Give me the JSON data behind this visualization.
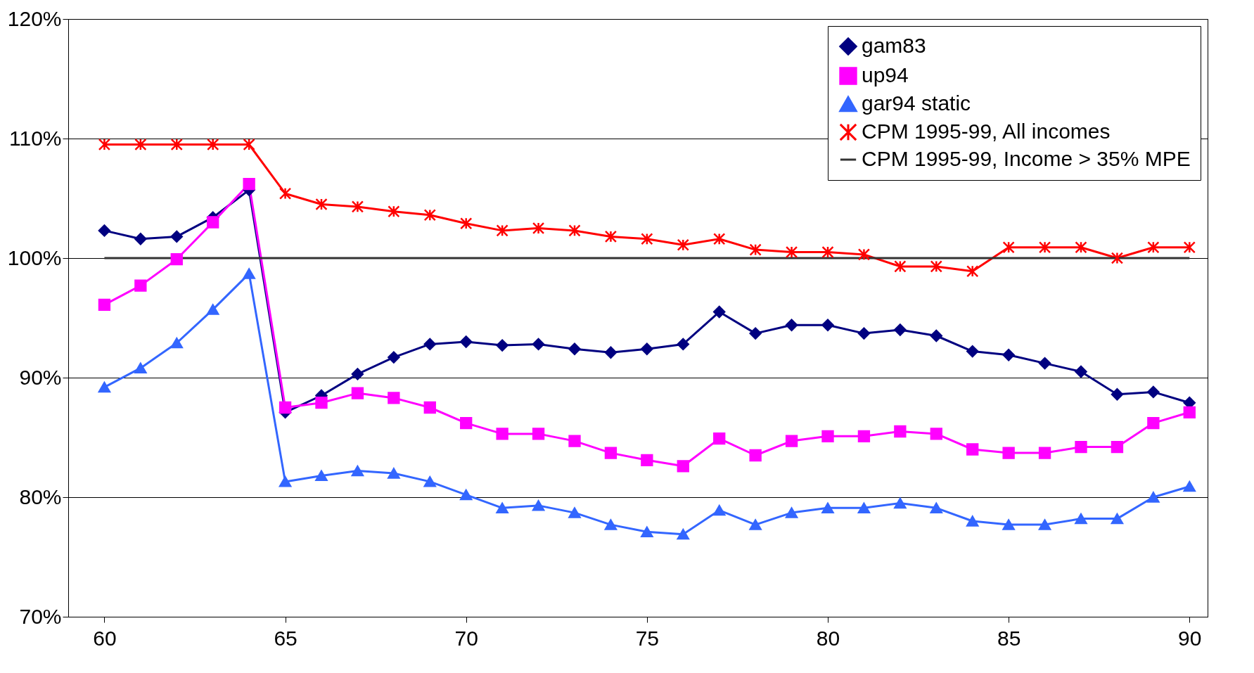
{
  "chart_data": {
    "type": "line",
    "x": [
      60,
      61,
      62,
      63,
      64,
      65,
      66,
      67,
      68,
      69,
      70,
      71,
      72,
      73,
      74,
      75,
      76,
      77,
      78,
      79,
      80,
      81,
      82,
      83,
      84,
      85,
      86,
      87,
      88,
      89,
      90
    ],
    "xlim": [
      59,
      90.5
    ],
    "xticks": [
      60,
      65,
      70,
      75,
      80,
      85,
      90
    ],
    "ylim": [
      70,
      120
    ],
    "yticks": [
      {
        "value": 70,
        "label": "70%"
      },
      {
        "value": 80,
        "label": "80%"
      },
      {
        "value": 90,
        "label": "90%"
      },
      {
        "value": 100,
        "label": "100%"
      },
      {
        "value": 110,
        "label": "110%"
      },
      {
        "value": 120,
        "label": "120%"
      }
    ],
    "grid": "y",
    "legend": "top right",
    "series": [
      {
        "name": "gam83",
        "color": "#000080",
        "marker": "diamond",
        "values": [
          102.3,
          101.6,
          101.8,
          103.4,
          105.7,
          87.1,
          88.5,
          90.3,
          91.7,
          92.8,
          93.0,
          92.7,
          92.8,
          92.4,
          92.1,
          92.4,
          92.8,
          95.5,
          93.7,
          94.4,
          94.4,
          93.7,
          94.0,
          93.5,
          92.2,
          91.9,
          91.2,
          90.5,
          88.6,
          88.8,
          87.9
        ]
      },
      {
        "name": "up94",
        "color": "#ff00ff",
        "marker": "square",
        "values": [
          96.1,
          97.7,
          99.9,
          103.0,
          106.2,
          87.5,
          87.9,
          88.7,
          88.3,
          87.5,
          86.2,
          85.3,
          85.3,
          84.7,
          83.7,
          83.1,
          82.6,
          84.9,
          83.5,
          84.7,
          85.1,
          85.1,
          85.5,
          85.3,
          84.0,
          83.7,
          83.7,
          84.2,
          84.2,
          86.2,
          87.1
        ]
      },
      {
        "name": "gar94 static",
        "color": "#3366ff",
        "marker": "triangle",
        "values": [
          89.2,
          90.8,
          92.9,
          95.7,
          98.7,
          81.3,
          81.8,
          82.2,
          82.0,
          81.3,
          80.2,
          79.1,
          79.3,
          78.7,
          77.7,
          77.1,
          76.9,
          78.9,
          77.7,
          78.7,
          79.1,
          79.1,
          79.5,
          79.1,
          78.0,
          77.7,
          77.7,
          78.2,
          78.2,
          80.0,
          80.9
        ]
      },
      {
        "name": "CPM 1995-99, All incomes",
        "color": "#ff0000",
        "marker": "cross",
        "values": [
          109.5,
          109.5,
          109.5,
          109.5,
          109.5,
          105.4,
          104.5,
          104.3,
          103.9,
          103.6,
          102.9,
          102.3,
          102.5,
          102.3,
          101.8,
          101.6,
          101.1,
          101.6,
          100.7,
          100.5,
          100.5,
          100.3,
          99.3,
          99.3,
          98.9,
          100.9,
          100.9,
          100.9,
          100.0,
          100.9,
          100.9
        ]
      },
      {
        "name": "CPM 1995-99, Income > 35% MPE",
        "color": "#333333",
        "marker": "none",
        "values": [
          100,
          100,
          100,
          100,
          100,
          100,
          100,
          100,
          100,
          100,
          100,
          100,
          100,
          100,
          100,
          100,
          100,
          100,
          100,
          100,
          100,
          100,
          100,
          100,
          100,
          100,
          100,
          100,
          100,
          100,
          100
        ]
      }
    ]
  }
}
